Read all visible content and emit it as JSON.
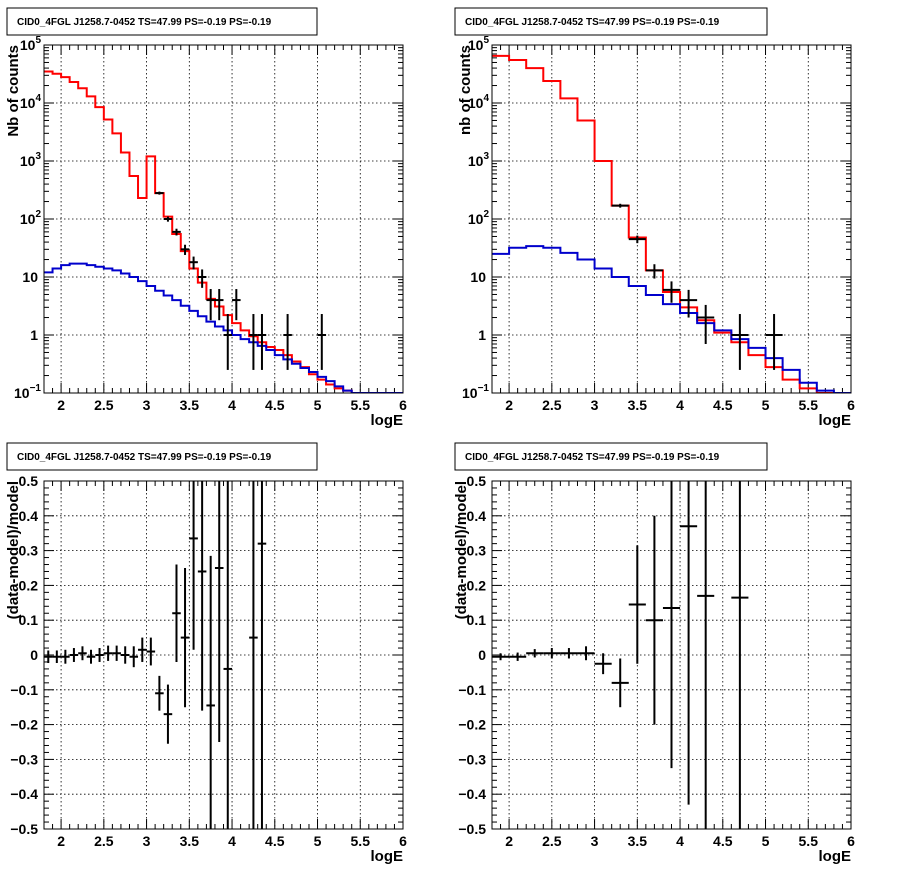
{
  "chart_data": [
    {
      "type": "line",
      "title": "CID0_4FGL J1258.7-0452 TS=47.99 PS=-0.19 PS=-0.19",
      "xlabel": "logE",
      "ylabel": "Nb of counts",
      "yscale": "log",
      "xlim": [
        1.8,
        6.0
      ],
      "ylim": [
        0.1,
        100000
      ],
      "x_ticks": [
        2,
        2.5,
        3,
        3.5,
        4,
        4.5,
        5,
        5.5,
        6
      ],
      "x_tick_labels": [
        "2",
        "2.5",
        "3",
        "3.5",
        "4",
        "4.5",
        "5",
        "5.5",
        "6"
      ],
      "y_ticks": [
        0.1,
        1,
        10,
        100,
        1000,
        10000,
        100000
      ],
      "y_tick_labels": [
        {
          "base": "10",
          "exp": "−1"
        },
        {
          "base": "1",
          "exp": ""
        },
        {
          "base": "10",
          "exp": ""
        },
        {
          "base": "10",
          "exp": "2"
        },
        {
          "base": "10",
          "exp": "3"
        },
        {
          "base": "10",
          "exp": "4"
        },
        {
          "base": "10",
          "exp": "5"
        }
      ],
      "grid": true,
      "series": [
        {
          "color": "#ff0000",
          "kind": "step",
          "edges": [
            1.8,
            1.9,
            2.0,
            2.1,
            2.2,
            2.3,
            2.4,
            2.5,
            2.6,
            2.7,
            2.8,
            2.9,
            3.0,
            3.1,
            3.2,
            3.3,
            3.4,
            3.5,
            3.6,
            3.7,
            3.8,
            3.9,
            4.0,
            4.1,
            4.2,
            4.3,
            4.4,
            4.5,
            4.6,
            4.7,
            4.8,
            4.9,
            5.0,
            5.1,
            5.2,
            5.3,
            5.4,
            5.5,
            5.6,
            5.7,
            5.8,
            5.9,
            6.0
          ],
          "values": [
            35000,
            32000,
            28000,
            23000,
            18000,
            13000,
            8500,
            5200,
            3000,
            1400,
            550,
            230,
            1200,
            280,
            110,
            55,
            28,
            14,
            8,
            4.2,
            3.1,
            2.2,
            1.6,
            1.2,
            0.95,
            0.75,
            0.62,
            0.55,
            0.45,
            0.35,
            0.28,
            0.21,
            0.17,
            0.14,
            0.12,
            0.11,
            0.1,
            0.1,
            0.1,
            0.1,
            0.1,
            0.1
          ]
        },
        {
          "color": "#0000cc",
          "kind": "step",
          "edges": [
            1.8,
            1.9,
            2.0,
            2.1,
            2.2,
            2.3,
            2.4,
            2.5,
            2.6,
            2.7,
            2.8,
            2.9,
            3.0,
            3.1,
            3.2,
            3.3,
            3.4,
            3.5,
            3.6,
            3.7,
            3.8,
            3.9,
            4.0,
            4.1,
            4.2,
            4.3,
            4.4,
            4.5,
            4.6,
            4.7,
            4.8,
            4.9,
            5.0,
            5.1,
            5.2,
            5.3,
            5.4,
            5.5,
            5.6,
            5.7,
            5.8,
            5.9,
            6.0
          ],
          "values": [
            12,
            14,
            16,
            17,
            17,
            16,
            15,
            14,
            13,
            11.5,
            10,
            8.5,
            7,
            5.8,
            4.8,
            4,
            3.2,
            2.6,
            2.1,
            1.7,
            1.4,
            1.2,
            1,
            0.85,
            0.75,
            0.65,
            0.55,
            0.45,
            0.38,
            0.32,
            0.27,
            0.23,
            0.19,
            0.16,
            0.13,
            0.11,
            0.1,
            0.1,
            0.1,
            0.1,
            0.1,
            0.1
          ]
        },
        {
          "color": "#000000",
          "kind": "points",
          "x": [
            3.15,
            3.25,
            3.35,
            3.45,
            3.55,
            3.65,
            3.75,
            3.85,
            3.95,
            4.05,
            4.25,
            4.35,
            4.65,
            5.05
          ],
          "y": [
            280,
            100,
            60,
            30,
            18,
            10,
            4,
            4,
            1,
            4,
            1,
            1,
            1,
            1
          ],
          "yerr_low": [
            17,
            10,
            8,
            6,
            4.5,
            3.5,
            2.2,
            2.2,
            0.75,
            2.2,
            0.75,
            0.75,
            0.75,
            0.75
          ],
          "yerr_high": [
            17,
            10,
            8,
            6,
            4.5,
            3.5,
            2.2,
            2.2,
            1.3,
            2.2,
            1.3,
            1.3,
            1.3,
            1.3
          ],
          "xerr": 0.05
        }
      ]
    },
    {
      "type": "line",
      "title": "CID0_4FGL J1258.7-0452 TS=47.99 PS=-0.19 PS=-0.19",
      "xlabel": "logE",
      "ylabel": "nb of counts",
      "yscale": "log",
      "xlim": [
        1.8,
        6.0
      ],
      "ylim": [
        0.1,
        100000
      ],
      "x_ticks": [
        2,
        2.5,
        3,
        3.5,
        4,
        4.5,
        5,
        5.5,
        6
      ],
      "x_tick_labels": [
        "2",
        "2.5",
        "3",
        "3.5",
        "4",
        "4.5",
        "5",
        "5.5",
        "6"
      ],
      "y_ticks": [
        0.1,
        1,
        10,
        100,
        1000,
        10000,
        100000
      ],
      "y_tick_labels": [
        {
          "base": "10",
          "exp": "−1"
        },
        {
          "base": "1",
          "exp": ""
        },
        {
          "base": "10",
          "exp": ""
        },
        {
          "base": "10",
          "exp": "2"
        },
        {
          "base": "10",
          "exp": "3"
        },
        {
          "base": "10",
          "exp": "4"
        },
        {
          "base": "10",
          "exp": "5"
        }
      ],
      "grid": true,
      "series": [
        {
          "color": "#ff0000",
          "kind": "step",
          "edges": [
            1.8,
            2.0,
            2.2,
            2.4,
            2.6,
            2.8,
            3.0,
            3.2,
            3.4,
            3.6,
            3.8,
            4.0,
            4.2,
            4.4,
            4.6,
            4.8,
            5.0,
            5.2,
            5.4,
            5.6,
            5.8,
            6.0
          ],
          "values": [
            65000,
            55000,
            40000,
            24000,
            12000,
            5000,
            1000,
            170,
            48,
            13,
            5.5,
            3,
            1.8,
            1.1,
            0.75,
            0.45,
            0.28,
            0.17,
            0.12,
            0.1,
            0.1
          ]
        },
        {
          "color": "#0000cc",
          "kind": "step",
          "edges": [
            1.8,
            2.0,
            2.2,
            2.4,
            2.6,
            2.8,
            3.0,
            3.2,
            3.4,
            3.6,
            3.8,
            4.0,
            4.2,
            4.4,
            4.6,
            4.8,
            5.0,
            5.2,
            5.4,
            5.6,
            5.8,
            6.0
          ],
          "values": [
            25,
            32,
            34,
            32,
            26,
            20,
            14,
            10,
            7,
            4.9,
            3.4,
            2.4,
            1.6,
            1.2,
            0.85,
            0.6,
            0.4,
            0.25,
            0.15,
            0.11,
            0.1
          ]
        },
        {
          "color": "#000000",
          "kind": "points",
          "x": [
            3.3,
            3.5,
            3.7,
            3.9,
            4.1,
            4.3,
            4.7,
            5.1
          ],
          "y": [
            170,
            45,
            13,
            6,
            4,
            2,
            1,
            1
          ],
          "yerr_low": [
            13,
            6.7,
            3.6,
            2.4,
            2,
            1.3,
            0.75,
            0.75
          ],
          "yerr_high": [
            13,
            6.7,
            3.6,
            2.4,
            2,
            1.3,
            1.3,
            1.3
          ],
          "xerr": 0.1
        }
      ]
    },
    {
      "type": "scatter",
      "title": "CID0_4FGL J1258.7-0452 TS=47.99 PS=-0.19 PS=-0.19",
      "xlabel": "logE",
      "ylabel": "(data-model)/model",
      "yscale": "linear",
      "xlim": [
        1.8,
        6.0
      ],
      "ylim": [
        -0.5,
        0.5
      ],
      "x_ticks": [
        2,
        2.5,
        3,
        3.5,
        4,
        4.5,
        5,
        5.5,
        6
      ],
      "x_tick_labels": [
        "2",
        "2.5",
        "3",
        "3.5",
        "4",
        "4.5",
        "5",
        "5.5",
        "6"
      ],
      "y_ticks": [
        -0.5,
        -0.4,
        -0.3,
        -0.2,
        -0.1,
        0,
        0.1,
        0.2,
        0.3,
        0.4,
        0.5
      ],
      "y_tick_labels": [
        "−0.5",
        "−0.4",
        "−0.3",
        "−0.2",
        "−0.1",
        "0",
        "0.1",
        "0.2",
        "0.3",
        "0.4",
        "0.5"
      ],
      "grid": true,
      "series": [
        {
          "color": "#000000",
          "kind": "points",
          "x": [
            1.85,
            1.95,
            2.05,
            2.15,
            2.25,
            2.35,
            2.45,
            2.55,
            2.65,
            2.75,
            2.85,
            2.95,
            3.05,
            3.15,
            3.25,
            3.35,
            3.45,
            3.55,
            3.65,
            3.75,
            3.85,
            3.95,
            4.25,
            4.35
          ],
          "y": [
            -0.005,
            -0.005,
            -0.005,
            0,
            0.005,
            -0.005,
            0,
            0.005,
            0.005,
            0,
            -0.005,
            0.015,
            0.01,
            -0.11,
            -0.17,
            0.12,
            0.05,
            0.335,
            0.24,
            -0.145,
            0.25,
            -0.04,
            0.05,
            0.32
          ],
          "yerr": [
            0.018,
            0.018,
            0.02,
            0.02,
            0.02,
            0.02,
            0.02,
            0.022,
            0.022,
            0.025,
            0.03,
            0.035,
            0.04,
            0.05,
            0.085,
            0.14,
            0.2,
            0.32,
            0.4,
            0.43,
            0.5,
            0.6,
            0.8,
            0.9
          ],
          "xerr": 0.05
        }
      ]
    },
    {
      "type": "scatter",
      "title": "CID0_4FGL J1258.7-0452 TS=47.99 PS=-0.19 PS=-0.19",
      "xlabel": "logE",
      "ylabel": "(data-model)/model",
      "yscale": "linear",
      "xlim": [
        1.8,
        6.0
      ],
      "ylim": [
        -0.5,
        0.5
      ],
      "x_ticks": [
        2,
        2.5,
        3,
        3.5,
        4,
        4.5,
        5,
        5.5,
        6
      ],
      "x_tick_labels": [
        "2",
        "2.5",
        "3",
        "3.5",
        "4",
        "4.5",
        "5",
        "5.5",
        "6"
      ],
      "y_ticks": [
        -0.5,
        -0.4,
        -0.3,
        -0.2,
        -0.1,
        0,
        0.1,
        0.2,
        0.3,
        0.4,
        0.5
      ],
      "y_tick_labels": [
        "−0.5",
        "−0.4",
        "−0.3",
        "−0.2",
        "−0.1",
        "0",
        "0.1",
        "0.2",
        "0.3",
        "0.4",
        "0.5"
      ],
      "grid": true,
      "series": [
        {
          "color": "#000000",
          "kind": "points",
          "x": [
            1.9,
            2.1,
            2.3,
            2.5,
            2.7,
            2.9,
            3.1,
            3.3,
            3.5,
            3.7,
            3.9,
            4.1,
            4.3,
            4.7
          ],
          "y": [
            -0.005,
            -0.005,
            0.005,
            0.005,
            0.005,
            0.005,
            -0.025,
            -0.08,
            0.145,
            0.1,
            0.135,
            0.37,
            0.17,
            0.165
          ],
          "yerr": [
            0.01,
            0.012,
            0.012,
            0.015,
            0.015,
            0.02,
            0.03,
            0.07,
            0.17,
            0.3,
            0.46,
            0.8,
            1.0,
            1.2
          ],
          "xerr": 0.1
        }
      ]
    }
  ]
}
